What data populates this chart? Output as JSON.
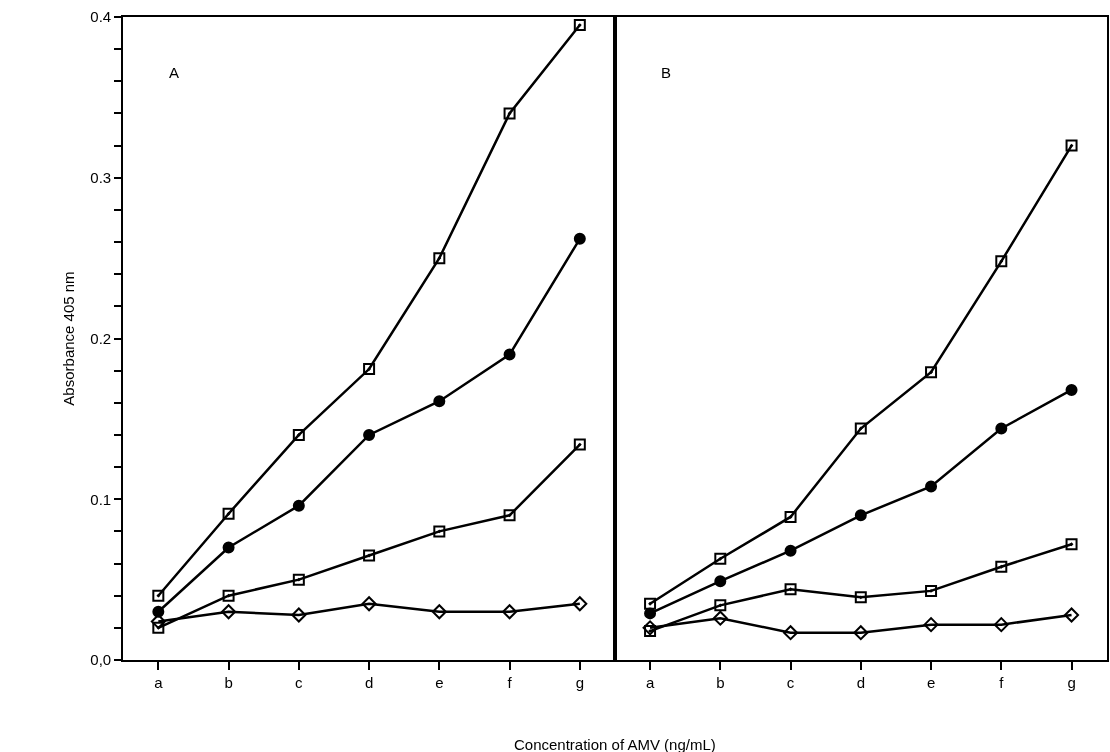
{
  "chart_data": [
    {
      "type": "line",
      "xlabel": "Concentration of AMV (ng/mL)",
      "ylabel": "Absorbance 405 nm",
      "annotations": [
        "A"
      ],
      "categories": [
        "a",
        "b",
        "c",
        "d",
        "e",
        "f",
        "g"
      ],
      "ylim": [
        0,
        0.4
      ],
      "yticks": [
        {
          "value": 0,
          "label": "0,0"
        },
        {
          "value": 0.02,
          "label": null
        },
        {
          "value": 0.04,
          "label": null
        },
        {
          "value": 0.06,
          "label": null
        },
        {
          "value": 0.08,
          "label": null
        },
        0.1,
        {
          "value": 0.12,
          "label": null
        },
        {
          "value": 0.14,
          "label": null
        },
        {
          "value": 0.16,
          "label": null
        },
        {
          "value": 0.18,
          "label": null
        },
        0.2,
        {
          "value": 0.22,
          "label": null
        },
        {
          "value": 0.24,
          "label": null
        },
        {
          "value": 0.26,
          "label": null
        },
        {
          "value": 0.28,
          "label": null
        },
        0.3,
        {
          "value": 0.32,
          "label": null
        },
        {
          "value": 0.34,
          "label": null
        },
        {
          "value": 0.36,
          "label": null
        },
        {
          "value": 0.38,
          "label": null
        },
        0.4
      ],
      "line_style": "solid",
      "series": [
        {
          "color": "#000000",
          "marker": "square",
          "values": [
            0.04,
            0.091,
            0.14,
            0.181,
            0.25,
            0.34,
            0.395
          ]
        },
        {
          "color": "#000000",
          "marker": "circle",
          "values": [
            0.03,
            0.07,
            0.096,
            0.14,
            0.161,
            0.19,
            0.262
          ]
        },
        {
          "color": "#000000",
          "marker": "square",
          "values": [
            0.02,
            0.04,
            0.05,
            0.065,
            0.08,
            0.09,
            0.134
          ]
        },
        {
          "color": "#000000",
          "marker": "diamond",
          "values": [
            0.024,
            0.03,
            0.028,
            0.035,
            0.03,
            0.03,
            0.035
          ]
        }
      ]
    },
    {
      "type": "line",
      "annotations": [
        "B"
      ],
      "categories": [
        "a",
        "b",
        "c",
        "d",
        "e",
        "f",
        "g"
      ],
      "ylim": [
        0,
        0.4
      ],
      "tick_labels": "x",
      "line_style": "solid",
      "series": [
        {
          "color": "#000000",
          "marker": "square",
          "values": [
            0.035,
            0.063,
            0.089,
            0.144,
            0.179,
            0.248,
            0.32
          ]
        },
        {
          "color": "#000000",
          "marker": "circle",
          "values": [
            0.029,
            0.049,
            0.068,
            0.09,
            0.108,
            0.144,
            0.168
          ]
        },
        {
          "color": "#000000",
          "marker": "square",
          "values": [
            0.018,
            0.034,
            0.044,
            0.039,
            0.043,
            0.058,
            0.072
          ]
        },
        {
          "color": "#000000",
          "marker": "diamond",
          "values": [
            0.02,
            0.026,
            0.017,
            0.017,
            0.022,
            0.022,
            0.028
          ]
        }
      ]
    }
  ]
}
